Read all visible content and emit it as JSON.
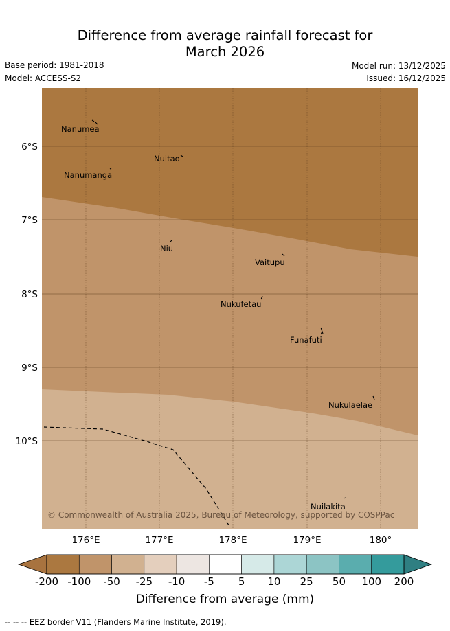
{
  "title": {
    "line1": "Difference from average rainfall forecast for",
    "line2": "March 2026"
  },
  "meta": {
    "base_period": "Base period: 1981-2018",
    "model": "Model: ACCESS-S2",
    "model_run": "Model run: 13/12/2025",
    "issued": "Issued: 16/12/2025"
  },
  "map": {
    "lat_labels": [
      "6°S",
      "7°S",
      "8°S",
      "9°S",
      "10°S"
    ],
    "lon_labels": [
      "176°E",
      "177°E",
      "178°E",
      "179°E",
      "180°"
    ],
    "places": [
      "Nanumea",
      "Nuitao",
      "Nanumanga",
      "Niu",
      "Vaitupu",
      "Nukufetau",
      "Funafuti",
      "Nukulaelae",
      "Nuilakita"
    ],
    "copyright": "© Commonwealth of Australia 2025, Bureau of Meteorology, supported by COSPPac",
    "zone_colors": {
      "band_-200_-100": "#ab7840",
      "band_-100_-50": "#c0946a",
      "band_-50_-25": "#d1b190"
    }
  },
  "colorbar": {
    "title": "Difference from average (mm)",
    "tick_labels": [
      "-200",
      "-100",
      "-50",
      "-25",
      "-10",
      "-5",
      "5",
      "10",
      "25",
      "50",
      "100",
      "200"
    ],
    "colors": [
      "#ab7840",
      "#c0946a",
      "#d1b190",
      "#e4cfbd",
      "#ede6e2",
      "#ffffff",
      "#d6eae8",
      "#acd6d6",
      "#8cc4c4",
      "#5aadae",
      "#349b9c"
    ],
    "extend_low_color": "#a8733f",
    "extend_high_color": "#2f7f82"
  },
  "footnote": "--  --  -- EEZ border V11 (Flanders Marine Institute, 2019)."
}
